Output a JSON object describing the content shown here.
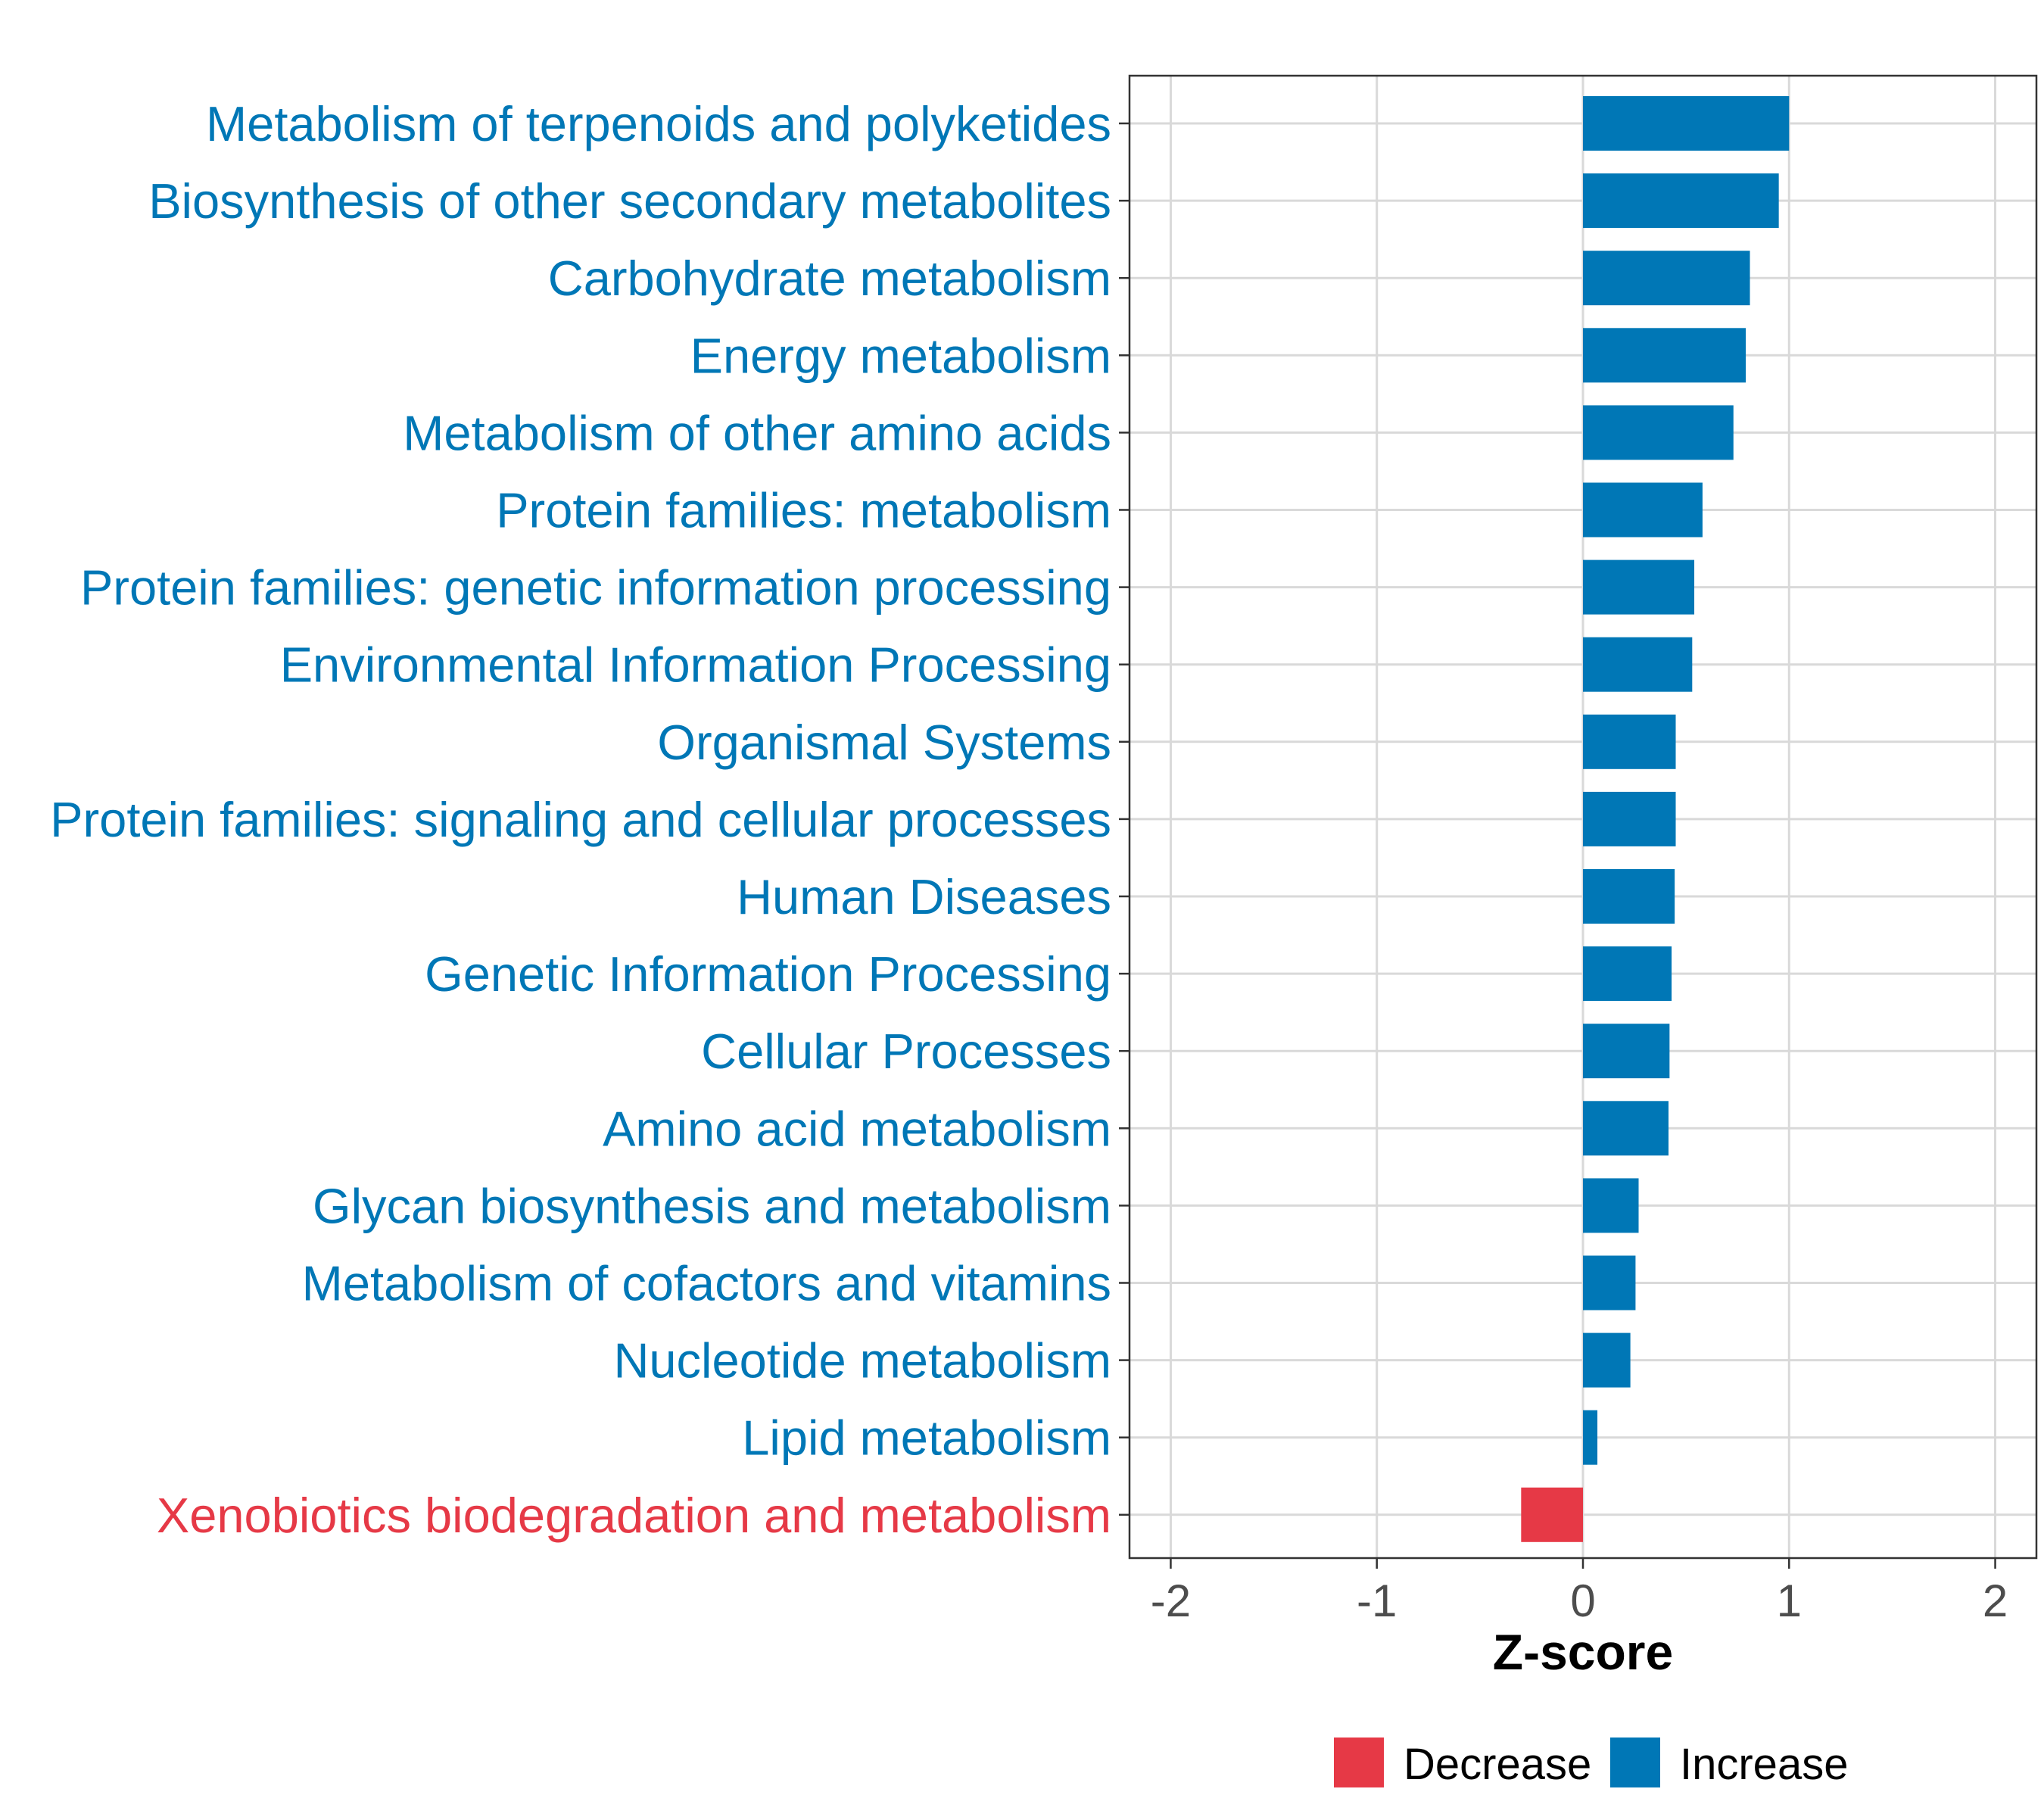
{
  "chart_data": {
    "type": "bar",
    "orientation": "horizontal",
    "title": "",
    "xlabel": "Z-score",
    "ylabel": "",
    "xlim": [
      -2.2,
      2.2
    ],
    "xticks": [
      -2,
      -1,
      0,
      1,
      2
    ],
    "xtick_labels": [
      "-2",
      "-1",
      "0",
      "1",
      "2"
    ],
    "grid": true,
    "categories": [
      "Metabolism of terpenoids and polyketides",
      "Biosynthesis of other secondary metabolites",
      "Carbohydrate metabolism",
      "Energy metabolism",
      "Metabolism of other amino acids",
      "Protein families: metabolism",
      "Protein families: genetic information processing",
      "Environmental Information Processing",
      "Organismal Systems",
      "Protein families: signaling and cellular processes",
      "Human Diseases",
      "Genetic Information Processing",
      "Cellular Processes",
      "Amino acid metabolism",
      "Glycan biosynthesis and metabolism",
      "Metabolism of cofactors and vitamins",
      "Nucleotide metabolism",
      "Lipid metabolism",
      "Xenobiotics biodegradation and metabolism"
    ],
    "values": [
      1.0,
      0.95,
      0.81,
      0.79,
      0.73,
      0.58,
      0.54,
      0.53,
      0.45,
      0.45,
      0.445,
      0.43,
      0.42,
      0.415,
      0.27,
      0.255,
      0.23,
      0.07,
      -0.3
    ],
    "groups": [
      "Increase",
      "Increase",
      "Increase",
      "Increase",
      "Increase",
      "Increase",
      "Increase",
      "Increase",
      "Increase",
      "Increase",
      "Increase",
      "Increase",
      "Increase",
      "Increase",
      "Increase",
      "Increase",
      "Increase",
      "Increase",
      "Decrease"
    ],
    "legend": {
      "position": "bottom",
      "entries": [
        {
          "name": "Decrease",
          "color": "#E63946"
        },
        {
          "name": "Increase",
          "color": "#0077B6"
        }
      ]
    },
    "colors": {
      "Increase": "#0077B6",
      "Decrease": "#E63946"
    }
  }
}
